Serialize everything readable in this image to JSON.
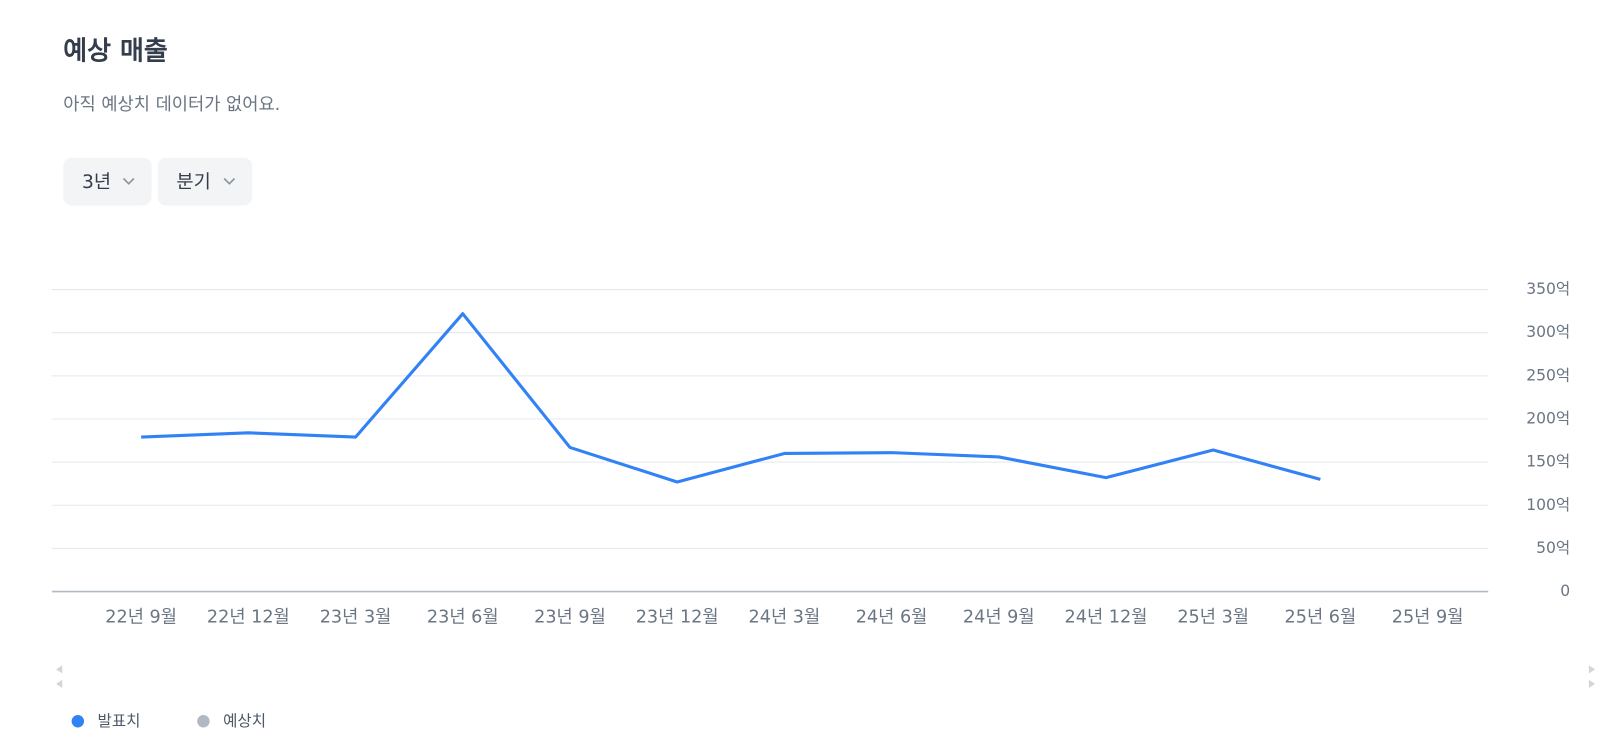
{
  "header": {
    "title": "예상 매출",
    "subtitle": "아직 예상치 데이터가 없어요."
  },
  "controls": [
    "3년",
    "분기"
  ],
  "chart_data": {
    "type": "line",
    "categories": [
      "22년 9월",
      "22년 12월",
      "23년 3월",
      "23년 6월",
      "23년 9월",
      "23년 12월",
      "24년 3월",
      "24년 6월",
      "24년 9월",
      "24년 12월",
      "25년 3월",
      "25년 6월",
      "25년 9월"
    ],
    "series": [
      {
        "name": "발표치",
        "color": "#3182f6",
        "values": [
          179,
          184,
          179,
          322,
          167,
          127,
          160,
          161,
          156,
          132,
          164,
          130,
          null
        ]
      },
      {
        "name": "예상치",
        "color": "#b0b8c1",
        "values": [
          null,
          null,
          null,
          null,
          null,
          null,
          null,
          null,
          null,
          null,
          null,
          null,
          null
        ]
      }
    ],
    "ylim": [
      0,
      350
    ],
    "yticks": [
      0,
      {
        "value": 50,
        "label": "50억"
      },
      {
        "value": 100,
        "label": "100억"
      },
      {
        "value": 150,
        "label": "150억"
      },
      {
        "value": 200,
        "label": "200억"
      },
      {
        "value": 250,
        "label": "250억"
      },
      {
        "value": 300,
        "label": "300억"
      },
      {
        "value": 350,
        "label": "350억"
      }
    ],
    "grid": true
  }
}
